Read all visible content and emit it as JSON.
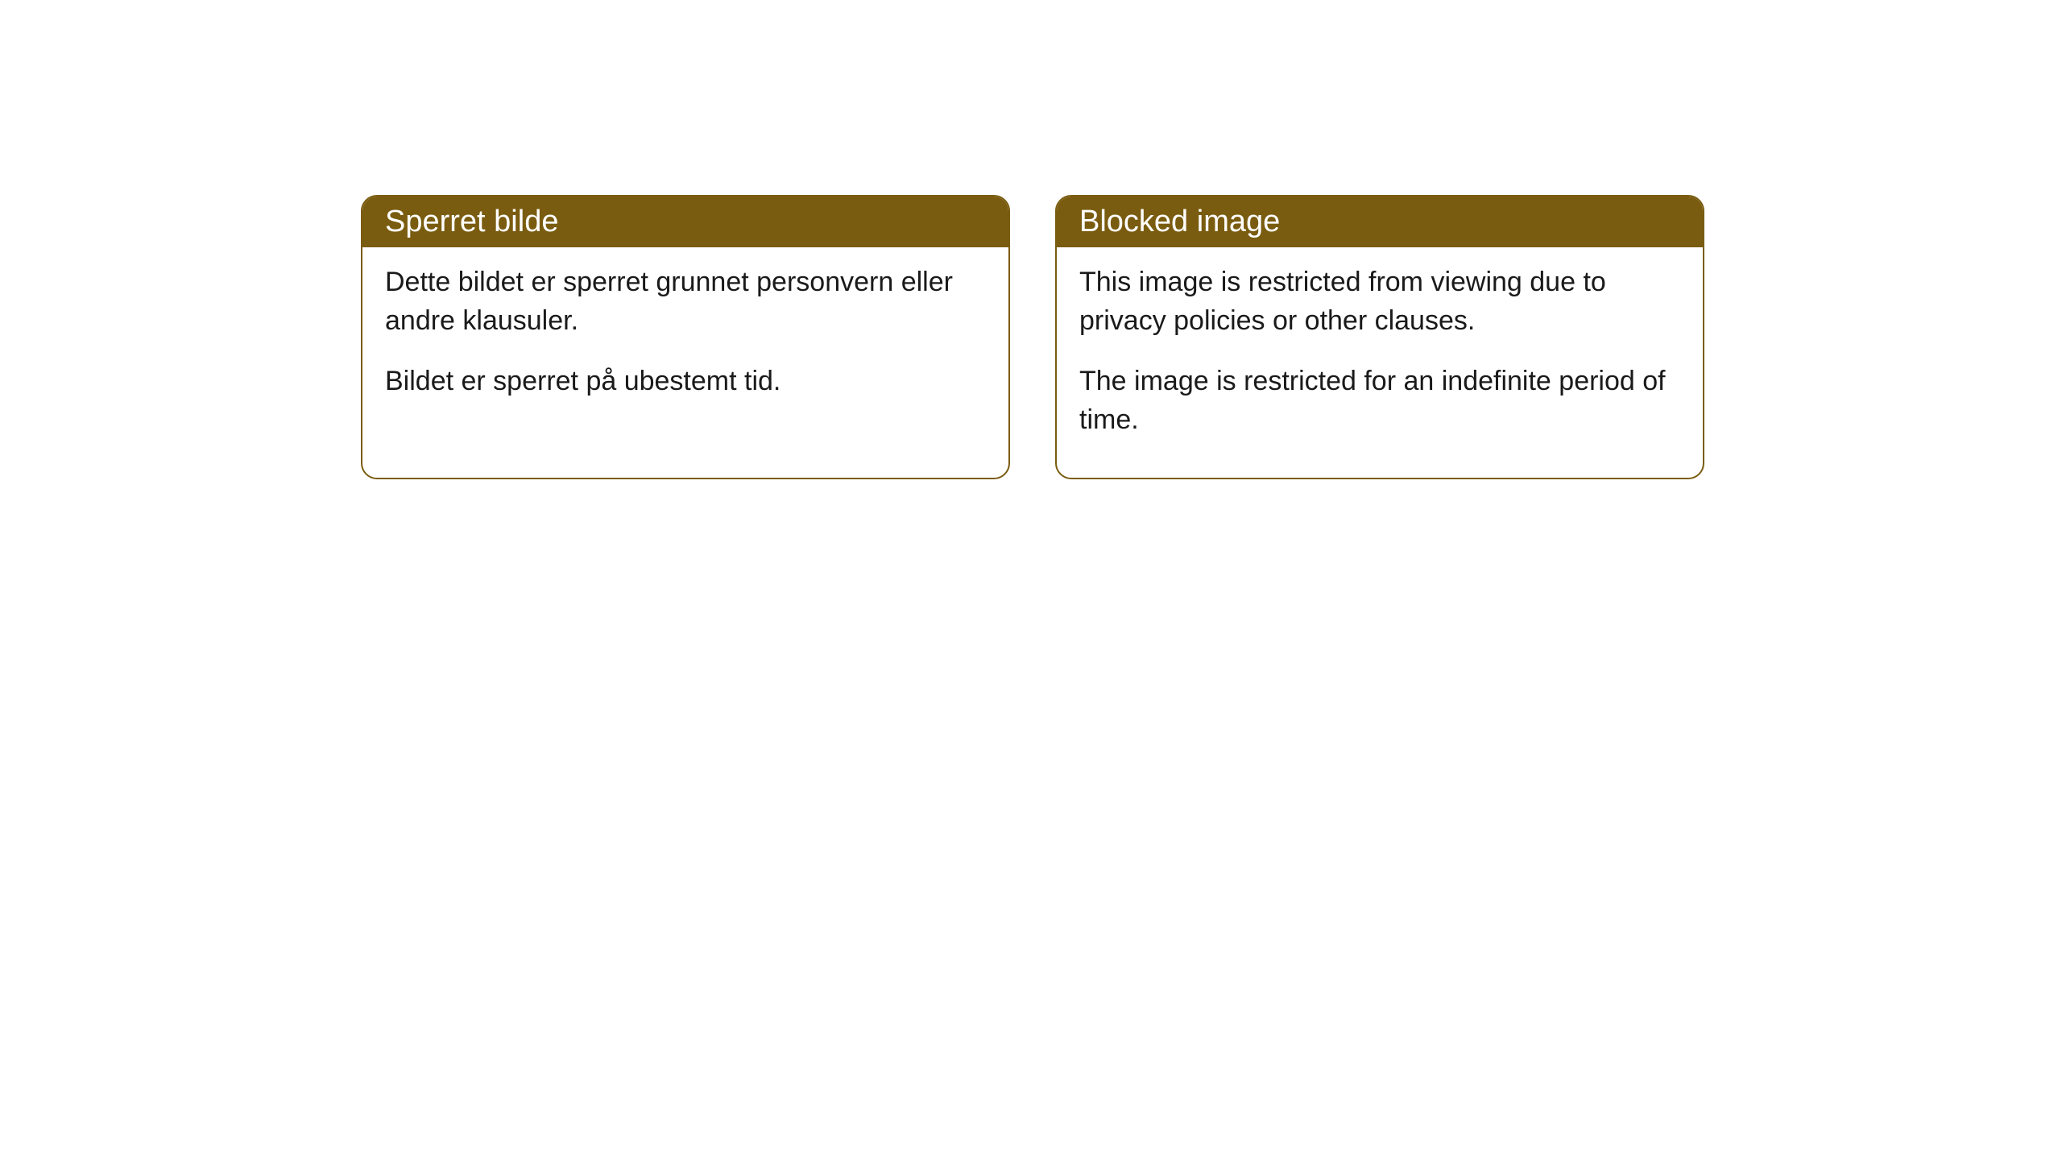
{
  "cards": [
    {
      "title": "Sperret bilde",
      "paragraph1": "Dette bildet er sperret grunnet personvern eller andre klausuler.",
      "paragraph2": "Bildet er sperret på ubestemt tid."
    },
    {
      "title": "Blocked image",
      "paragraph1": "This image is restricted from viewing due to privacy policies or other clauses.",
      "paragraph2": "The image is restricted for an indefinite period of time."
    }
  ],
  "styling": {
    "header_bg_color": "#7a5c10",
    "header_text_color": "#ffffff",
    "border_color": "#7a5c10",
    "body_bg_color": "#ffffff",
    "body_text_color": "#1a1a1a",
    "border_radius": 20,
    "title_fontsize": 38,
    "body_fontsize": 34
  }
}
